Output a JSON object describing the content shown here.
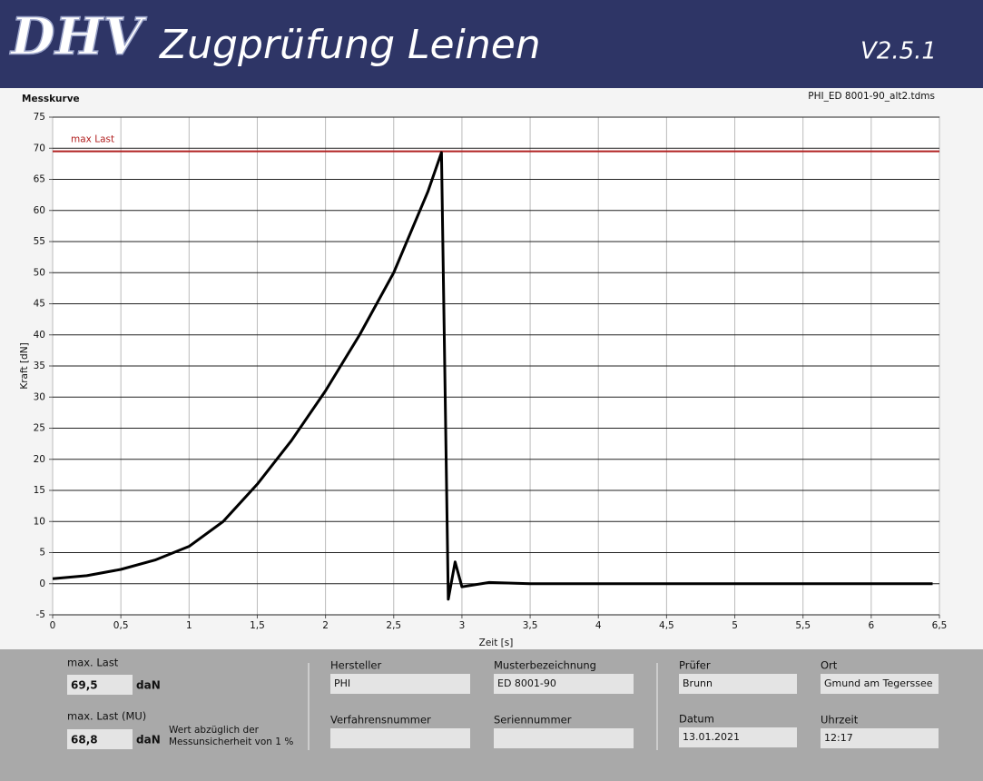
{
  "header": {
    "logo": "DHV",
    "title": "Zugprüfung Leinen",
    "version": "V2.5.1"
  },
  "panel": {
    "label": "Messkurve",
    "file": "PHI_ED 8001-90_alt2.tdms"
  },
  "chart_data": {
    "type": "line",
    "x_label": "Zeit [s]",
    "y_label": "Kraft [dN]",
    "x": [
      0,
      0.25,
      0.5,
      0.75,
      1,
      1.25,
      1.5,
      1.75,
      2,
      2.25,
      2.5,
      2.75,
      2.85,
      2.9,
      2.95,
      3.0,
      3.2,
      3.5,
      4,
      4.5,
      5,
      5.5,
      6,
      6.45
    ],
    "series": [
      {
        "color": "#000000",
        "values": [
          0.8,
          1.3,
          2.3,
          3.8,
          6,
          10,
          16,
          23,
          31,
          40,
          50,
          63,
          69.3,
          -2.5,
          3.5,
          -0.5,
          0.2,
          0,
          0,
          0,
          0,
          0,
          0,
          0
        ]
      }
    ],
    "xlim": [
      0,
      6.5
    ],
    "xticks": [
      0,
      {
        "value": 0.5,
        "label": "0,5"
      },
      1,
      {
        "value": 1.5,
        "label": "1,5"
      },
      2,
      {
        "value": 2.5,
        "label": "2,5"
      },
      3,
      {
        "value": 3.5,
        "label": "3,5"
      },
      4,
      {
        "value": 4.5,
        "label": "4,5"
      },
      5,
      {
        "value": 5.5,
        "label": "5,5"
      },
      6,
      {
        "value": 6.5,
        "label": "6,5"
      }
    ],
    "ylim": [
      -5,
      75
    ],
    "yticks": [
      -5,
      0,
      5,
      10,
      15,
      20,
      25,
      30,
      35,
      40,
      45,
      50,
      55,
      60,
      65,
      70,
      75
    ],
    "grid": true,
    "annotation": {
      "text": "max Last",
      "value": 69.5,
      "color": "#b22222"
    }
  },
  "results": {
    "max_label": "max. Last",
    "max_value": "69,5",
    "max_unit": "daN",
    "mu_label": "max. Last (MU)",
    "mu_value": "68,8",
    "mu_unit": "daN",
    "note": "Wert abzüglich der\nMessunsicherheit von 1 %"
  },
  "fields": {
    "hersteller_label": "Hersteller",
    "hersteller": "PHI",
    "muster_label": "Musterbezeichnung",
    "muster": "ED 8001-90",
    "verfahren_label": "Verfahrensnummer",
    "serien_label": "Seriennummer",
    "pruefer_label": "Prüfer",
    "pruefer": "Brunn",
    "ort_label": "Ort",
    "ort": "Gmund am Tegerssee",
    "datum_label": "Datum",
    "datum": "13.01.2021",
    "uhrzeit_label": "Uhrzeit",
    "uhrzeit": "12:17"
  }
}
